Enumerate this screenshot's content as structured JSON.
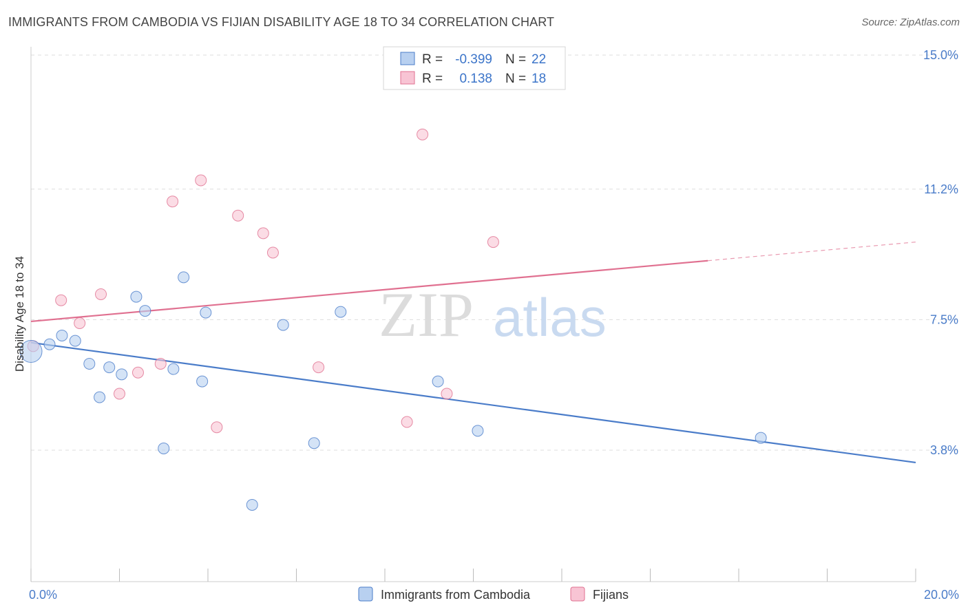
{
  "header": {
    "title": "IMMIGRANTS FROM CAMBODIA VS FIJIAN DISABILITY AGE 18 TO 34 CORRELATION CHART",
    "source": "Source: ZipAtlas.com"
  },
  "watermark": {
    "zip": "ZIP",
    "atlas": "atlas"
  },
  "chart_data": {
    "type": "scatter",
    "title": "IMMIGRANTS FROM CAMBODIA VS FIJIAN DISABILITY AGE 18 TO 34 CORRELATION CHART",
    "xlabel": "",
    "ylabel": "Disability Age 18 to 34",
    "xlim": [
      0,
      20
    ],
    "ylim": [
      0.5,
      15.8
    ],
    "x_tick_labels": [
      {
        "value": 0,
        "label": "0.0%"
      },
      {
        "value": 20,
        "label": "20.0%"
      }
    ],
    "x_minor_ticks": [
      0,
      2,
      4,
      6,
      8,
      10,
      12,
      14,
      16,
      18,
      20
    ],
    "y_ticks": [
      {
        "value": 3.8,
        "label": "3.8%"
      },
      {
        "value": 7.5,
        "label": "7.5%"
      },
      {
        "value": 11.2,
        "label": "11.2%"
      },
      {
        "value": 15.0,
        "label": "15.0%"
      }
    ],
    "grid": true,
    "legend_position": "top-center",
    "series": [
      {
        "name": "Immigrants from Cambodia",
        "color": "#4a7cc9",
        "fill": "#b8d0f0",
        "r_label": "R =",
        "r_value": "-0.399",
        "n_label": "N =",
        "n_value": "22",
        "points": [
          {
            "x": 0.0,
            "y": 6.6,
            "big": true
          },
          {
            "x": 0.42,
            "y": 6.8
          },
          {
            "x": 0.7,
            "y": 7.05
          },
          {
            "x": 1.0,
            "y": 6.9
          },
          {
            "x": 1.32,
            "y": 6.25
          },
          {
            "x": 1.55,
            "y": 5.3
          },
          {
            "x": 1.77,
            "y": 6.15
          },
          {
            "x": 2.05,
            "y": 5.95
          },
          {
            "x": 2.38,
            "y": 8.15
          },
          {
            "x": 2.58,
            "y": 7.75
          },
          {
            "x": 3.0,
            "y": 3.85
          },
          {
            "x": 3.22,
            "y": 6.1
          },
          {
            "x": 3.45,
            "y": 8.7
          },
          {
            "x": 3.87,
            "y": 5.75
          },
          {
            "x": 3.95,
            "y": 7.7
          },
          {
            "x": 5.0,
            "y": 2.25
          },
          {
            "x": 5.7,
            "y": 7.35
          },
          {
            "x": 6.4,
            "y": 4.0
          },
          {
            "x": 7.0,
            "y": 7.72
          },
          {
            "x": 9.2,
            "y": 5.75
          },
          {
            "x": 10.1,
            "y": 4.35
          },
          {
            "x": 16.5,
            "y": 4.15
          }
        ],
        "trend": {
          "x0": 0.0,
          "y0": 6.85,
          "x1": 20.0,
          "y1": 3.45,
          "solid_until": 20.0
        }
      },
      {
        "name": "Fijians",
        "color": "#e07090",
        "fill": "#f8c4d4",
        "r_label": "R =",
        "r_value": "0.138",
        "n_label": "N =",
        "n_value": "18",
        "points": [
          {
            "x": 0.05,
            "y": 6.75
          },
          {
            "x": 0.68,
            "y": 8.05
          },
          {
            "x": 1.1,
            "y": 7.4
          },
          {
            "x": 1.58,
            "y": 8.22
          },
          {
            "x": 2.0,
            "y": 5.4
          },
          {
            "x": 2.42,
            "y": 6.0
          },
          {
            "x": 2.93,
            "y": 6.25
          },
          {
            "x": 3.2,
            "y": 10.85
          },
          {
            "x": 3.84,
            "y": 11.45
          },
          {
            "x": 4.2,
            "y": 4.45
          },
          {
            "x": 4.68,
            "y": 10.45
          },
          {
            "x": 5.25,
            "y": 9.95
          },
          {
            "x": 5.47,
            "y": 9.4
          },
          {
            "x": 6.5,
            "y": 6.15
          },
          {
            "x": 8.5,
            "y": 4.6
          },
          {
            "x": 8.85,
            "y": 12.75
          },
          {
            "x": 9.4,
            "y": 5.4
          },
          {
            "x": 10.45,
            "y": 9.7
          }
        ],
        "trend": {
          "x0": 0.0,
          "y0": 7.45,
          "x1": 20.0,
          "y1": 9.7,
          "solid_until": 15.3
        }
      }
    ]
  }
}
